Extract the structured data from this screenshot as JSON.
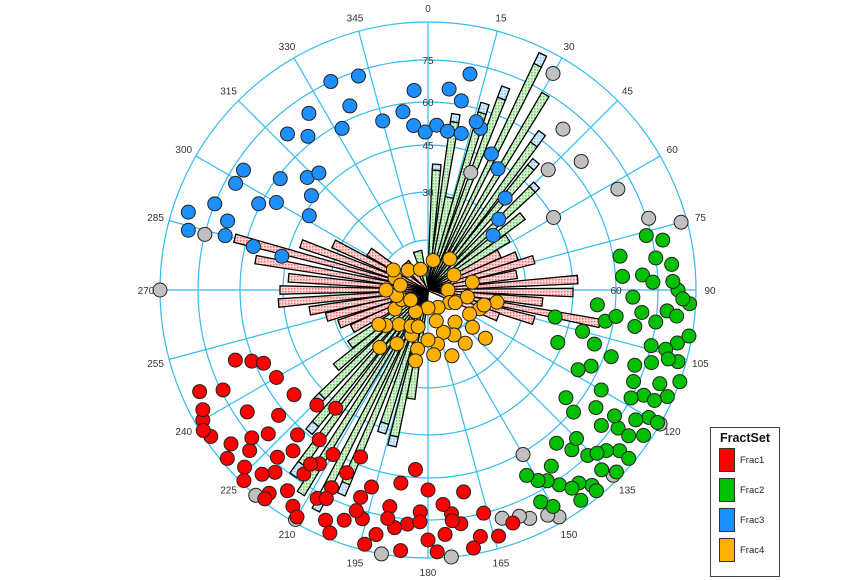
{
  "chart_data": {
    "type": "polar-stereonet-rose",
    "title": "",
    "center": [
      428,
      290
    ],
    "outer_radius": 268,
    "azimuth_labels": [
      0,
      15,
      30,
      45,
      60,
      75,
      90,
      105,
      120,
      135,
      150,
      165,
      180,
      195,
      210,
      225,
      240,
      255,
      270,
      285,
      300,
      315,
      330,
      345
    ],
    "ring_labels": [
      {
        "value": 30,
        "r": 98
      },
      {
        "value": 45,
        "r": 145
      },
      {
        "value": 60,
        "r": 188
      },
      {
        "value": 75,
        "r": 230
      }
    ],
    "ring_radii": [
      50,
      98,
      145,
      188,
      230,
      268
    ],
    "grid_color": "#33bbee",
    "legend": {
      "title": "FractSet",
      "entries": [
        {
          "label": "Frac1",
          "color": "#ff0000"
        },
        {
          "label": "Frac2",
          "color": "#00c000"
        },
        {
          "label": "Frac3",
          "color": "#1e8fff"
        },
        {
          "label": "Frac4",
          "color": "#ffb000"
        }
      ]
    },
    "rose_bars": [
      {
        "az": 4,
        "len": 120,
        "set": "Frac2",
        "cap": 6
      },
      {
        "az": 9,
        "len": 170,
        "set": "Frac2",
        "cap": 8
      },
      {
        "az": 13,
        "len": 95,
        "set": "Frac2",
        "cap": 0
      },
      {
        "az": 17,
        "len": 185,
        "set": "Frac2",
        "cap": 10
      },
      {
        "az": 21,
        "len": 205,
        "set": "Frac2",
        "cap": 12
      },
      {
        "az": 26,
        "len": 250,
        "set": "Frac2",
        "cap": 12
      },
      {
        "az": 31,
        "len": 228,
        "set": "Frac2",
        "cap": 0
      },
      {
        "az": 36,
        "len": 180,
        "set": "Frac2",
        "cap": 14
      },
      {
        "az": 40,
        "len": 160,
        "set": "Frac2",
        "cap": 8
      },
      {
        "az": 46,
        "len": 145,
        "set": "Frac2",
        "cap": 6
      },
      {
        "az": 52,
        "len": 120,
        "set": "Frac2",
        "cap": 0
      },
      {
        "az": 57,
        "len": 95,
        "set": "Frac2",
        "cap": 0
      },
      {
        "az": 63,
        "len": 80,
        "set": "Frac1",
        "cap": 0
      },
      {
        "az": 69,
        "len": 95,
        "set": "Frac1",
        "cap": 0
      },
      {
        "az": 74,
        "len": 110,
        "set": "Frac1",
        "cap": 0
      },
      {
        "az": 80,
        "len": 90,
        "set": "Frac1",
        "cap": 0
      },
      {
        "az": 86,
        "len": 150,
        "set": "Frac1",
        "cap": 0
      },
      {
        "az": 91,
        "len": 145,
        "set": "Frac1",
        "cap": 0
      },
      {
        "az": 96,
        "len": 115,
        "set": "Frac1",
        "cap": 0
      },
      {
        "az": 101,
        "len": 175,
        "set": "Frac1",
        "cap": 0
      },
      {
        "az": 106,
        "len": 110,
        "set": "Frac1",
        "cap": 0
      },
      {
        "az": 111,
        "len": 75,
        "set": "Frac1",
        "cap": 0
      },
      {
        "az": 189,
        "len": 110,
        "set": "Frac2",
        "cap": 0
      },
      {
        "az": 193,
        "len": 150,
        "set": "Frac2",
        "cap": 10
      },
      {
        "az": 198,
        "len": 140,
        "set": "Frac2",
        "cap": 10
      },
      {
        "az": 203,
        "len": 210,
        "set": "Frac2",
        "cap": 12
      },
      {
        "az": 207,
        "len": 235,
        "set": "Frac2",
        "cap": 12
      },
      {
        "az": 212,
        "len": 240,
        "set": "Frac2",
        "cap": 0
      },
      {
        "az": 216,
        "len": 215,
        "set": "Frac2",
        "cap": 14
      },
      {
        "az": 220,
        "len": 175,
        "set": "Frac2",
        "cap": 10
      },
      {
        "az": 225,
        "len": 150,
        "set": "Frac2",
        "cap": 8
      },
      {
        "az": 230,
        "len": 120,
        "set": "Frac2",
        "cap": 0
      },
      {
        "az": 235,
        "len": 95,
        "set": "Frac2",
        "cap": 0
      },
      {
        "az": 243,
        "len": 85,
        "set": "Frac1",
        "cap": 0
      },
      {
        "az": 249,
        "len": 95,
        "set": "Frac1",
        "cap": 0
      },
      {
        "az": 255,
        "len": 105,
        "set": "Frac1",
        "cap": 0
      },
      {
        "az": 260,
        "len": 120,
        "set": "Frac1",
        "cap": 0
      },
      {
        "az": 265,
        "len": 150,
        "set": "Frac1",
        "cap": 0
      },
      {
        "az": 270,
        "len": 148,
        "set": "Frac1",
        "cap": 0
      },
      {
        "az": 275,
        "len": 140,
        "set": "Frac1",
        "cap": 0
      },
      {
        "az": 280,
        "len": 175,
        "set": "Frac1",
        "cap": 0
      },
      {
        "az": 285,
        "len": 200,
        "set": "Frac1",
        "cap": 0
      },
      {
        "az": 290,
        "len": 135,
        "set": "Frac1",
        "cap": 0
      },
      {
        "az": 296,
        "len": 105,
        "set": "Frac1",
        "cap": 0
      },
      {
        "az": 303,
        "len": 70,
        "set": "Frac1",
        "cap": 0
      },
      {
        "az": 320,
        "len": 35,
        "set": "Frac1",
        "cap": 0
      },
      {
        "az": 345,
        "len": 40,
        "set": "Frac2",
        "cap": 0
      }
    ],
    "points": {
      "Frac3": [
        [
          342,
          225
        ],
        [
          335,
          230
        ],
        [
          337,
          200
        ],
        [
          356,
          200
        ],
        [
          6,
          202
        ],
        [
          10,
          192
        ],
        [
          11,
          220
        ],
        [
          18,
          170
        ],
        [
          16,
          175
        ],
        [
          326,
          213
        ],
        [
          332,
          183
        ],
        [
          345,
          175
        ],
        [
          352,
          180
        ],
        [
          355,
          165
        ],
        [
          359,
          158
        ],
        [
          3,
          165
        ],
        [
          7,
          160
        ],
        [
          12,
          160
        ],
        [
          25,
          150
        ],
        [
          30,
          140
        ],
        [
          40,
          120
        ],
        [
          45,
          100
        ],
        [
          50,
          85
        ],
        [
          303,
          220
        ],
        [
          299,
          220
        ],
        [
          297,
          190
        ],
        [
          300,
          175
        ],
        [
          307,
          185
        ],
        [
          313,
          165
        ],
        [
          317,
          160
        ],
        [
          309,
          150
        ],
        [
          288,
          252
        ],
        [
          284,
          247
        ],
        [
          285,
          210
        ],
        [
          284,
          180
        ],
        [
          283,
          150
        ],
        [
          302,
          140
        ],
        [
          289,
          212
        ],
        [
          292,
          230
        ],
        [
          318,
          210
        ],
        [
          322,
          195
        ]
      ],
      "Frac2": [
        [
          78,
          240
        ],
        [
          82,
          230
        ],
        [
          86,
          215
        ],
        [
          88,
          225
        ],
        [
          90,
          250
        ],
        [
          93,
          262
        ],
        [
          95,
          240
        ],
        [
          98,
          230
        ],
        [
          100,
          210
        ],
        [
          102,
          255
        ],
        [
          104,
          245
        ],
        [
          106,
          260
        ],
        [
          108,
          235
        ],
        [
          110,
          220
        ],
        [
          112,
          250
        ],
        [
          114,
          262
        ],
        [
          116,
          240
        ],
        [
          118,
          230
        ],
        [
          120,
          255
        ],
        [
          122,
          245
        ],
        [
          124,
          260
        ],
        [
          126,
          235
        ],
        [
          128,
          220
        ],
        [
          130,
          250
        ],
        [
          132,
          240
        ],
        [
          134,
          262
        ],
        [
          136,
          230
        ],
        [
          138,
          215
        ],
        [
          140,
          255
        ],
        [
          142,
          245
        ],
        [
          144,
          260
        ],
        [
          146,
          235
        ],
        [
          148,
          225
        ],
        [
          150,
          250
        ],
        [
          152,
          240
        ],
        [
          110,
          195
        ],
        [
          115,
          180
        ],
        [
          120,
          200
        ],
        [
          125,
          205
        ],
        [
          130,
          190
        ],
        [
          135,
          210
        ],
        [
          140,
          200
        ],
        [
          145,
          215
        ],
        [
          150,
          220
        ],
        [
          152,
          210
        ],
        [
          100,
          180
        ],
        [
          105,
          160
        ],
        [
          95,
          170
        ],
        [
          98,
          190
        ],
        [
          108,
          175
        ],
        [
          118,
          170
        ],
        [
          128,
          175
        ],
        [
          112,
          140
        ],
        [
          102,
          130
        ],
        [
          92,
          205
        ],
        [
          86,
          195
        ],
        [
          80,
          195
        ],
        [
          76,
          225
        ],
        [
          84,
          245
        ],
        [
          96,
          215
        ],
        [
          104,
          230
        ],
        [
          114,
          225
        ],
        [
          124,
          225
        ],
        [
          134,
          235
        ],
        [
          144,
          245
        ],
        [
          88,
          245
        ],
        [
          92,
          255
        ],
        [
          100,
          265
        ],
        [
          110,
          268
        ],
        [
          120,
          265
        ],
        [
          130,
          262
        ],
        [
          140,
          262
        ],
        [
          136,
          250
        ],
        [
          126,
          248
        ],
        [
          116,
          252
        ],
        [
          106,
          250
        ],
        [
          96,
          250
        ]
      ],
      "Frac1": [
        [
          185,
          235
        ],
        [
          188,
          240
        ],
        [
          192,
          250
        ],
        [
          196,
          238
        ],
        [
          200,
          245
        ],
        [
          204,
          252
        ],
        [
          208,
          236
        ],
        [
          212,
          255
        ],
        [
          215,
          245
        ],
        [
          218,
          258
        ],
        [
          220,
          238
        ],
        [
          222,
          248
        ],
        [
          226,
          255
        ],
        [
          228,
          240
        ],
        [
          232,
          250
        ],
        [
          236,
          262
        ],
        [
          240,
          260
        ],
        [
          242,
          255
        ],
        [
          246,
          250
        ],
        [
          180,
          250
        ],
        [
          176,
          245
        ],
        [
          172,
          236
        ],
        [
          168,
          252
        ],
        [
          164,
          256
        ],
        [
          160,
          248
        ],
        [
          170,
          262
        ],
        [
          178,
          262
        ],
        [
          186,
          262
        ],
        [
          194,
          262
        ],
        [
          202,
          262
        ],
        [
          210,
          262
        ],
        [
          218,
          265
        ],
        [
          224,
          265
        ],
        [
          230,
          262
        ],
        [
          238,
          265
        ],
        [
          166,
          230
        ],
        [
          174,
          225
        ],
        [
          182,
          222
        ],
        [
          190,
          220
        ],
        [
          198,
          218
        ],
        [
          206,
          220
        ],
        [
          214,
          222
        ],
        [
          222,
          225
        ],
        [
          230,
          230
        ],
        [
          196,
          205
        ],
        [
          204,
          200
        ],
        [
          212,
          205
        ],
        [
          220,
          210
        ],
        [
          228,
          215
        ],
        [
          236,
          218
        ],
        [
          244,
          228
        ],
        [
          250,
          205
        ],
        [
          248,
          190
        ],
        [
          246,
          180
        ],
        [
          188,
          195
        ],
        [
          184,
          180
        ],
        [
          180,
          200
        ],
        [
          176,
          215
        ],
        [
          170,
          205
        ],
        [
          202,
          180
        ],
        [
          210,
          190
        ],
        [
          216,
          185
        ],
        [
          218,
          150
        ],
        [
          224,
          160
        ],
        [
          232,
          170
        ],
        [
          240,
          175
        ],
        [
          230,
          195
        ],
        [
          222,
          195
        ],
        [
          214,
          210
        ],
        [
          206,
          232
        ],
        [
          198,
          232
        ],
        [
          190,
          232
        ],
        [
          182,
          232
        ],
        [
          174,
          232
        ]
      ],
      "Frac4": [
        [
          290,
          35
        ],
        [
          300,
          40
        ],
        [
          315,
          28
        ],
        [
          340,
          22
        ],
        [
          10,
          30
        ],
        [
          35,
          38
        ],
        [
          60,
          30
        ],
        [
          80,
          45
        ],
        [
          100,
          40
        ],
        [
          110,
          55
        ],
        [
          120,
          48
        ],
        [
          130,
          58
        ],
        [
          140,
          42
        ],
        [
          150,
          52
        ],
        [
          160,
          45
        ],
        [
          170,
          55
        ],
        [
          180,
          50
        ],
        [
          190,
          60
        ],
        [
          200,
          48
        ],
        [
          210,
          62
        ],
        [
          220,
          45
        ],
        [
          230,
          55
        ],
        [
          240,
          38
        ],
        [
          250,
          28
        ],
        [
          260,
          32
        ],
        [
          270,
          42
        ],
        [
          280,
          28
        ],
        [
          90,
          20
        ],
        [
          120,
          25
        ],
        [
          150,
          20
        ],
        [
          180,
          18
        ],
        [
          210,
          25
        ],
        [
          240,
          20
        ],
        [
          100,
          70
        ],
        [
          130,
          75
        ],
        [
          160,
          70
        ],
        [
          190,
          72
        ],
        [
          220,
          75
        ],
        [
          105,
          58
        ],
        [
          145,
          65
        ],
        [
          175,
          65
        ],
        [
          205,
          40
        ],
        [
          235,
          60
        ],
        [
          115,
          30
        ],
        [
          165,
          32
        ],
        [
          195,
          38
        ]
      ],
      "Other": [
        [
          270,
          268
        ],
        [
          284,
          230
        ],
        [
          40,
          210
        ],
        [
          50,
          200
        ],
        [
          62,
          215
        ],
        [
          72,
          232
        ],
        [
          75,
          262
        ],
        [
          120,
          268
        ],
        [
          135,
          262
        ],
        [
          150,
          262
        ],
        [
          152,
          255
        ],
        [
          156,
          250
        ],
        [
          158,
          244
        ],
        [
          162,
          240
        ],
        [
          175,
          268
        ],
        [
          190,
          268
        ],
        [
          210,
          265
        ],
        [
          220,
          268
        ],
        [
          150,
          190
        ],
        [
          60,
          145
        ],
        [
          45,
          170
        ],
        [
          30,
          250
        ],
        [
          20,
          125
        ]
      ]
    }
  }
}
